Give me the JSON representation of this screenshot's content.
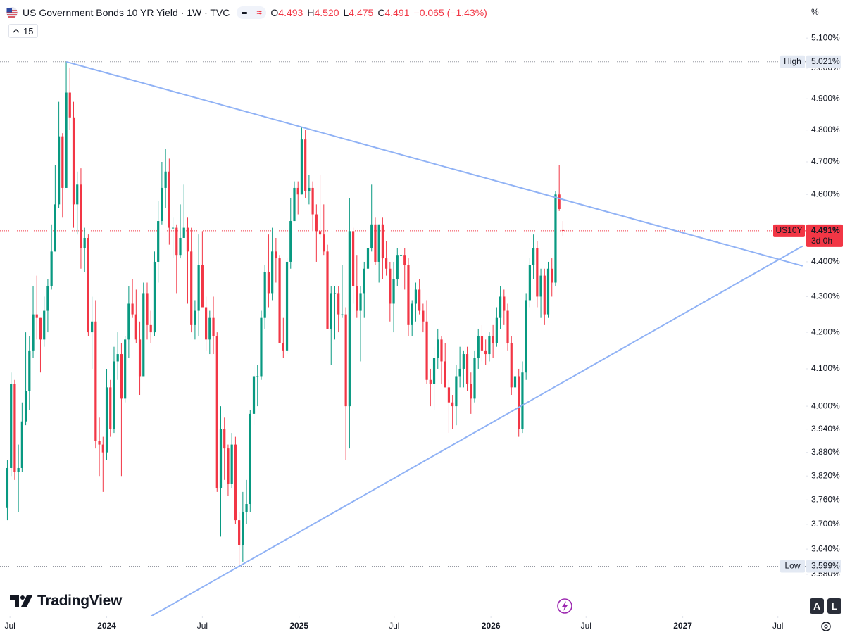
{
  "header": {
    "title": "US Government Bonds 10 YR Yield · 1W · TVC",
    "ohlc": [
      {
        "key": "O",
        "text": "4.493"
      },
      {
        "key": "H",
        "text": "4.520"
      },
      {
        "key": "L",
        "text": "4.475"
      },
      {
        "key": "C",
        "text": "4.491"
      }
    ],
    "change": "−0.065 (−1.43%)",
    "interval": "15"
  },
  "axis_unit": "%",
  "brand": "TradingView",
  "buttons": [
    "A",
    "L"
  ],
  "chart_data": {
    "type": "candlestick",
    "log_scale": true,
    "grid": false,
    "up_color": "#089981",
    "down_color": "#f23645",
    "xlim": [
      "2023-06-12",
      "2027-08-24"
    ],
    "xticks": [
      {
        "value": "2023-07-01",
        "label": "Jul"
      },
      {
        "value": "2024-01-01",
        "label": "2024"
      },
      {
        "value": "2024-07-01",
        "label": "Jul"
      },
      {
        "value": "2025-01-01",
        "label": "2025"
      },
      {
        "value": "2025-07-01",
        "label": "Jul"
      },
      {
        "value": "2026-01-01",
        "label": "2026"
      },
      {
        "value": "2026-07-01",
        "label": "Jul"
      },
      {
        "value": "2027-01-01",
        "label": "2027"
      },
      {
        "value": "2027-07-01",
        "label": "Jul"
      }
    ],
    "ylim": [
      3.483,
      5.23
    ],
    "yticks": [
      {
        "value": 5.1,
        "label": "5.100%"
      },
      {
        "value": 5.0,
        "label": "5.000%"
      },
      {
        "value": 4.9,
        "label": "4.900%"
      },
      {
        "value": 4.8,
        "label": "4.800%"
      },
      {
        "value": 4.7,
        "label": "4.700%"
      },
      {
        "value": 4.6,
        "label": "4.600%"
      },
      {
        "value": 4.4,
        "label": "4.400%"
      },
      {
        "value": 4.3,
        "label": "4.300%"
      },
      {
        "value": 4.2,
        "label": "4.200%"
      },
      {
        "value": 4.1,
        "label": "4.100%"
      },
      {
        "value": 4.0,
        "label": "4.000%"
      },
      {
        "value": 3.94,
        "label": "3.940%"
      },
      {
        "value": 3.88,
        "label": "3.880%"
      },
      {
        "value": 3.82,
        "label": "3.820%"
      },
      {
        "value": 3.76,
        "label": "3.760%"
      },
      {
        "value": 3.7,
        "label": "3.700%"
      },
      {
        "value": 3.64,
        "label": "3.640%"
      },
      {
        "value": 3.58,
        "label": "3.580%"
      }
    ],
    "x": [
      "2023-06-26",
      "2023-07-03",
      "2023-07-10",
      "2023-07-17",
      "2023-07-24",
      "2023-07-31",
      "2023-08-07",
      "2023-08-14",
      "2023-08-21",
      "2023-08-28",
      "2023-09-04",
      "2023-09-11",
      "2023-09-18",
      "2023-09-25",
      "2023-10-02",
      "2023-10-09",
      "2023-10-16",
      "2023-10-23",
      "2023-10-30",
      "2023-11-06",
      "2023-11-13",
      "2023-11-20",
      "2023-11-27",
      "2023-12-04",
      "2023-12-11",
      "2023-12-18",
      "2023-12-25",
      "2024-01-01",
      "2024-01-08",
      "2024-01-15",
      "2024-01-22",
      "2024-01-29",
      "2024-02-05",
      "2024-02-12",
      "2024-02-19",
      "2024-02-26",
      "2024-03-04",
      "2024-03-11",
      "2024-03-18",
      "2024-03-25",
      "2024-04-01",
      "2024-04-08",
      "2024-04-15",
      "2024-04-22",
      "2024-04-29",
      "2024-05-06",
      "2024-05-13",
      "2024-05-20",
      "2024-05-27",
      "2024-06-03",
      "2024-06-10",
      "2024-06-17",
      "2024-06-24",
      "2024-07-01",
      "2024-07-08",
      "2024-07-15",
      "2024-07-22",
      "2024-07-29",
      "2024-08-05",
      "2024-08-12",
      "2024-08-19",
      "2024-08-26",
      "2024-09-02",
      "2024-09-09",
      "2024-09-16",
      "2024-09-23",
      "2024-09-30",
      "2024-10-07",
      "2024-10-14",
      "2024-10-21",
      "2024-10-28",
      "2024-11-04",
      "2024-11-11",
      "2024-11-18",
      "2024-11-25",
      "2024-12-02",
      "2024-12-09",
      "2024-12-16",
      "2024-12-23",
      "2024-12-30",
      "2025-01-06",
      "2025-01-13",
      "2025-01-20",
      "2025-01-27",
      "2025-02-03",
      "2025-02-10",
      "2025-02-17",
      "2025-02-24",
      "2025-03-03",
      "2025-03-10",
      "2025-03-17",
      "2025-03-24",
      "2025-03-31",
      "2025-04-07",
      "2025-04-14",
      "2025-04-21",
      "2025-04-28",
      "2025-05-05",
      "2025-05-12",
      "2025-05-19",
      "2025-05-26",
      "2025-06-02",
      "2025-06-09",
      "2025-06-16",
      "2025-06-23",
      "2025-06-30",
      "2025-07-07",
      "2025-07-14",
      "2025-07-21",
      "2025-07-28",
      "2025-08-04",
      "2025-08-11",
      "2025-08-18",
      "2025-08-25",
      "2025-09-01",
      "2025-09-08",
      "2025-09-15",
      "2025-09-22",
      "2025-09-29",
      "2025-10-06",
      "2025-10-13",
      "2025-10-20",
      "2025-10-27",
      "2025-11-03",
      "2025-11-10",
      "2025-11-17",
      "2025-11-24",
      "2025-12-01",
      "2025-12-08",
      "2025-12-15",
      "2025-12-22",
      "2025-12-29",
      "2026-01-05",
      "2026-01-12",
      "2026-01-19",
      "2026-01-26",
      "2026-02-02",
      "2026-02-09",
      "2026-02-16",
      "2026-02-23",
      "2026-03-02",
      "2026-03-09",
      "2026-03-16",
      "2026-03-23",
      "2026-03-30",
      "2026-04-06",
      "2026-04-13",
      "2026-04-20",
      "2026-04-27",
      "2026-05-04",
      "2026-05-11",
      "2026-05-18"
    ],
    "open": [
      3.74,
      3.84,
      4.06,
      3.83,
      3.84,
      3.96,
      4.04,
      4.15,
      4.25,
      4.24,
      4.18,
      4.26,
      4.33,
      4.43,
      4.57,
      4.78,
      4.62,
      4.92,
      4.84,
      4.57,
      4.63,
      4.44,
      4.47,
      4.2,
      4.23,
      3.91,
      3.9,
      3.88,
      4.05,
      3.94,
      4.12,
      4.14,
      4.02,
      4.18,
      4.28,
      4.25,
      4.18,
      4.08,
      4.31,
      4.22,
      4.2,
      4.4,
      4.52,
      4.62,
      4.67,
      4.5,
      4.5,
      4.42,
      4.47,
      4.5,
      4.43,
      4.22,
      4.26,
      4.39,
      4.27,
      4.18,
      4.24,
      4.19,
      3.79,
      3.94,
      3.89,
      3.8,
      3.9,
      3.71,
      3.65,
      3.73,
      3.75,
      3.98,
      4.08,
      4.08,
      4.24,
      4.37,
      4.31,
      4.43,
      4.41,
      4.17,
      4.15,
      4.4,
      4.52,
      4.62,
      4.6,
      4.77,
      4.61,
      4.62,
      4.54,
      4.49,
      4.48,
      4.43,
      4.21,
      4.31,
      4.31,
      4.25,
      4.25,
      4.0,
      4.49,
      4.33,
      4.26,
      4.31,
      4.38,
      4.44,
      4.51,
      4.4,
      4.51,
      4.41,
      4.38,
      4.28,
      4.35,
      4.42,
      4.42,
      4.39,
      4.22,
      4.28,
      4.32,
      4.26,
      4.23,
      4.07,
      4.06,
      4.13,
      4.18,
      4.12,
      4.05,
      4.01,
      4.0,
      4.08,
      4.1,
      4.14,
      4.06,
      4.02,
      4.13,
      4.19,
      4.15,
      4.14,
      4.19,
      4.17,
      4.24,
      4.3,
      4.26,
      4.17,
      4.05,
      4.08,
      3.94,
      4.09,
      4.29,
      4.39,
      4.44,
      4.3,
      4.36,
      4.25,
      4.38,
      4.34,
      4.6,
      4.493
    ],
    "high": [
      3.86,
      4.09,
      4.07,
      3.9,
      4.01,
      4.2,
      4.19,
      4.33,
      4.36,
      4.24,
      4.3,
      4.35,
      4.51,
      4.69,
      4.89,
      4.79,
      5.021,
      5.0,
      4.89,
      4.67,
      4.68,
      4.5,
      4.48,
      4.3,
      4.29,
      3.97,
      3.92,
      4.1,
      4.07,
      4.16,
      4.2,
      4.17,
      4.19,
      4.33,
      4.35,
      4.32,
      4.23,
      4.34,
      4.34,
      4.26,
      4.43,
      4.58,
      4.7,
      4.74,
      4.71,
      4.53,
      4.51,
      4.57,
      4.63,
      4.53,
      4.5,
      4.29,
      4.48,
      4.49,
      4.3,
      4.26,
      4.3,
      4.2,
      4.0,
      3.97,
      3.9,
      3.93,
      3.92,
      3.73,
      3.78,
      3.81,
      3.99,
      4.11,
      4.11,
      4.26,
      4.39,
      4.48,
      4.5,
      4.47,
      4.42,
      4.24,
      4.41,
      4.59,
      4.64,
      4.64,
      4.81,
      4.8,
      4.66,
      4.64,
      4.57,
      4.66,
      4.57,
      4.45,
      4.33,
      4.33,
      4.33,
      4.39,
      4.27,
      4.59,
      4.5,
      4.42,
      4.33,
      4.4,
      4.54,
      4.63,
      4.53,
      4.51,
      4.53,
      4.46,
      4.4,
      4.4,
      4.44,
      4.5,
      4.44,
      4.41,
      4.29,
      4.34,
      4.35,
      4.28,
      4.29,
      4.1,
      4.16,
      4.21,
      4.19,
      4.17,
      4.07,
      4.03,
      4.11,
      4.16,
      4.15,
      4.16,
      4.09,
      4.15,
      4.21,
      4.22,
      4.18,
      4.2,
      4.22,
      4.27,
      4.33,
      4.32,
      4.28,
      4.19,
      4.12,
      4.1,
      4.12,
      4.31,
      4.41,
      4.48,
      4.46,
      4.38,
      4.38,
      4.4,
      4.41,
      4.61,
      4.69,
      4.52
    ],
    "low": [
      3.71,
      3.82,
      3.81,
      3.73,
      3.83,
      3.95,
      3.99,
      4.13,
      4.18,
      4.09,
      4.16,
      4.2,
      4.32,
      4.43,
      4.56,
      4.53,
      4.62,
      4.8,
      4.5,
      4.48,
      4.38,
      4.37,
      4.19,
      4.1,
      3.89,
      3.82,
      3.78,
      3.86,
      3.92,
      3.93,
      4.07,
      3.82,
      4.01,
      4.13,
      4.24,
      4.17,
      4.03,
      4.08,
      4.18,
      4.17,
      4.19,
      4.34,
      4.51,
      4.56,
      4.45,
      4.41,
      4.31,
      4.41,
      4.47,
      4.28,
      4.2,
      4.18,
      4.19,
      4.27,
      4.15,
      4.14,
      4.14,
      3.78,
      3.67,
      3.81,
      3.77,
      3.79,
      3.7,
      3.599,
      3.61,
      3.7,
      3.73,
      3.95,
      4.0,
      4.07,
      4.21,
      4.27,
      4.29,
      4.34,
      4.17,
      4.13,
      4.14,
      4.38,
      4.52,
      4.54,
      4.6,
      4.59,
      4.57,
      4.49,
      4.4,
      4.47,
      4.42,
      4.21,
      4.11,
      4.18,
      4.2,
      4.24,
      3.86,
      3.89,
      4.28,
      4.24,
      4.12,
      4.24,
      4.36,
      4.43,
      4.39,
      4.34,
      4.35,
      4.36,
      4.23,
      4.2,
      4.33,
      4.38,
      4.32,
      4.19,
      4.19,
      4.23,
      4.25,
      4.2,
      4.06,
      4.0,
      3.99,
      4.1,
      4.06,
      4.05,
      3.93,
      3.94,
      3.95,
      4.05,
      4.05,
      4.04,
      3.98,
      4.01,
      4.1,
      4.12,
      4.11,
      4.12,
      4.13,
      4.16,
      4.21,
      4.22,
      4.15,
      4.03,
      4.02,
      3.92,
      3.93,
      4.07,
      4.27,
      4.35,
      4.27,
      4.24,
      4.22,
      4.24,
      4.3,
      4.33,
      4.55,
      4.475
    ],
    "close": [
      3.84,
      4.06,
      3.83,
      3.84,
      3.96,
      4.04,
      4.15,
      4.25,
      4.24,
      4.18,
      4.26,
      4.33,
      4.43,
      4.57,
      4.78,
      4.62,
      4.92,
      4.84,
      4.57,
      4.63,
      4.44,
      4.47,
      4.2,
      4.23,
      3.91,
      3.9,
      3.88,
      4.05,
      3.94,
      4.12,
      4.14,
      4.02,
      4.18,
      4.28,
      4.25,
      4.18,
      4.08,
      4.31,
      4.22,
      4.2,
      4.4,
      4.52,
      4.62,
      4.67,
      4.5,
      4.5,
      4.42,
      4.47,
      4.5,
      4.43,
      4.22,
      4.26,
      4.39,
      4.27,
      4.18,
      4.24,
      4.19,
      3.79,
      3.94,
      3.89,
      3.8,
      3.9,
      3.71,
      3.65,
      3.73,
      3.75,
      3.98,
      4.08,
      4.08,
      4.24,
      4.37,
      4.31,
      4.43,
      4.41,
      4.17,
      4.15,
      4.4,
      4.52,
      4.62,
      4.6,
      4.77,
      4.61,
      4.62,
      4.54,
      4.49,
      4.48,
      4.43,
      4.21,
      4.31,
      4.31,
      4.25,
      4.25,
      4.0,
      4.49,
      4.33,
      4.26,
      4.31,
      4.38,
      4.44,
      4.51,
      4.4,
      4.51,
      4.41,
      4.38,
      4.28,
      4.35,
      4.42,
      4.42,
      4.39,
      4.22,
      4.28,
      4.32,
      4.26,
      4.23,
      4.07,
      4.06,
      4.13,
      4.18,
      4.12,
      4.05,
      4.01,
      4.0,
      4.08,
      4.1,
      4.14,
      4.06,
      4.02,
      4.13,
      4.19,
      4.15,
      4.14,
      4.19,
      4.17,
      4.24,
      4.3,
      4.26,
      4.17,
      4.05,
      4.08,
      3.94,
      4.09,
      4.29,
      4.39,
      4.44,
      4.3,
      4.36,
      4.25,
      4.38,
      4.34,
      4.6,
      4.556,
      4.491
    ],
    "trend_lines": [
      {
        "color": "#90b2f5",
        "extend_left": false,
        "x": [
          "2023-10-16",
          "2027-08-17"
        ],
        "values": [
          5.021,
          4.388
        ]
      },
      {
        "color": "#90b2f5",
        "extend_left": true,
        "x": [
          "2024-09-09",
          "2027-08-17"
        ],
        "values": [
          3.599,
          4.446
        ]
      }
    ],
    "high_marker": {
      "label": "High",
      "value": 5.021,
      "text": "5.021%"
    },
    "low_marker": {
      "label": "Low",
      "value": 3.599,
      "text": "3.599%"
    },
    "last_marker": {
      "symbol": "US10Y",
      "value": 4.491,
      "text": "4.491%",
      "countdown": "3d 0h"
    }
  }
}
